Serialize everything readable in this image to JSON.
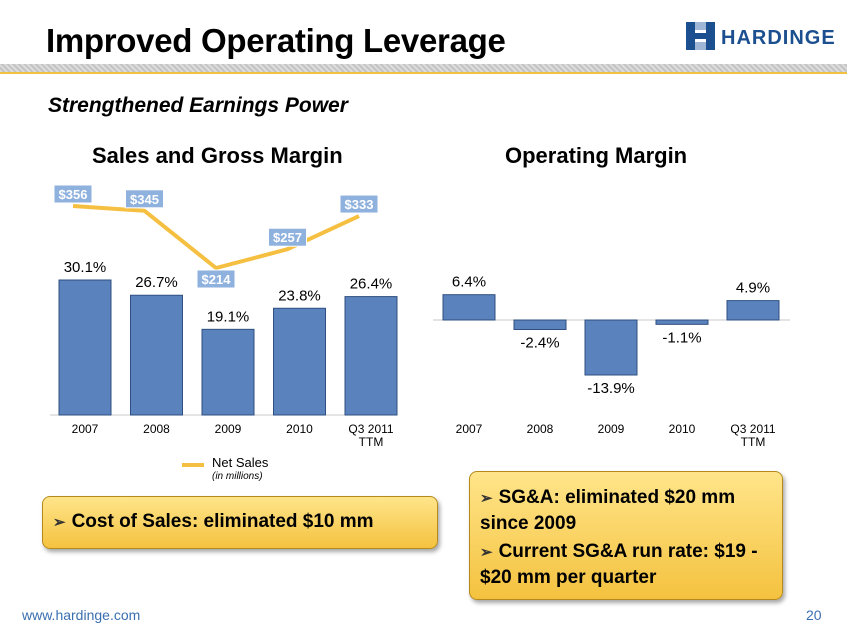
{
  "slide": {
    "title": "Improved Operating Leverage",
    "subtitle": "Strengthened Earnings Power",
    "logo_text": "HARDINGE",
    "footer_url": "www.hardinge.com",
    "page_number": "20"
  },
  "colors": {
    "bar": "#5a82bd",
    "line": "#f5c042",
    "label_bg": "#8fb1de",
    "callout_bg": "#f4c23f",
    "link": "#3a6fb0"
  },
  "chart_data": [
    {
      "type": "bar",
      "title": "Sales and Gross Margin",
      "categories": [
        "2007",
        "2008",
        "2009",
        "2010",
        "Q3 2011\nTTM"
      ],
      "series": [
        {
          "values": [
            30.1,
            26.7,
            19.1,
            23.8,
            26.4
          ],
          "labels": [
            "30.1%",
            "26.7%",
            "19.1%",
            "23.8%",
            "26.4%"
          ]
        },
        {
          "name": "Net Sales",
          "type": "line",
          "values": [
            356,
            345,
            214,
            257,
            333
          ],
          "labels": [
            "$356",
            "$345",
            "$214",
            "$257",
            "$333"
          ]
        }
      ],
      "legend": {
        "label": "Net Sales",
        "note": "(in millions)",
        "placement": "bottom"
      }
    },
    {
      "type": "bar",
      "title": "Operating Margin",
      "categories": [
        "2007",
        "2008",
        "2009",
        "2010",
        "Q3 2011\nTTM"
      ],
      "series": [
        {
          "values": [
            6.4,
            -2.4,
            -13.9,
            -1.1,
            4.9
          ],
          "labels": [
            "6.4%",
            "-2.4%",
            "-13.9%",
            "-1.1%",
            "4.9%"
          ]
        }
      ]
    }
  ],
  "callouts": {
    "left": "Cost of Sales: eliminated $10 mm",
    "right_1": "SG&A: eliminated $20 mm since 2009",
    "right_2": "Current SG&A run rate: $19 - $20 mm per quarter"
  }
}
